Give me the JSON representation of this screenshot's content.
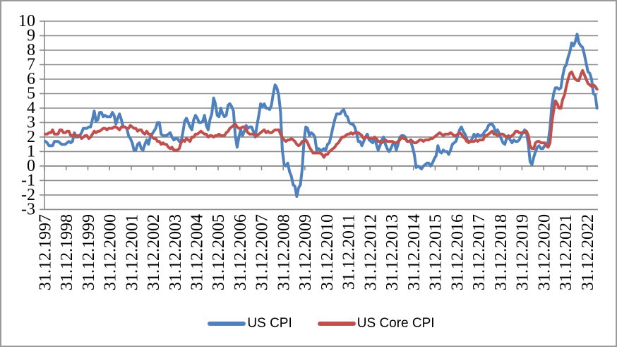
{
  "styles": {
    "background": "#ffffff",
    "border_color": "#9a9a9a",
    "grid_color": "#8a8a8a",
    "axis_text_color": "#000000",
    "series_blue": "#4F81BD",
    "series_red": "#C0504D"
  },
  "legend": {
    "items": [
      {
        "label": "US CPI",
        "color": "#4F81BD"
      },
      {
        "label": "US Core CPI",
        "color": "#C0504D"
      }
    ]
  },
  "chart_data": {
    "type": "line",
    "x_start": "31.12.1997",
    "x_end": "31.05.2023",
    "points_per_label_interval": 12,
    "x_tick_labels": [
      "31.12.1997",
      "31.12.1998",
      "31.12.1999",
      "31.12.2000",
      "31.12.2001",
      "31.12.2002",
      "31.12.2003",
      "31.12.2004",
      "31.12.2005",
      "31.12.2006",
      "31.12.2007",
      "31.12.2008",
      "31.12.2009",
      "31.12.2010",
      "31.12.2011",
      "31.12.2012",
      "31.12.2013",
      "31.12.2014",
      "31.12.2015",
      "31.12.2016",
      "31.12.2017",
      "31.12.2018",
      "31.12.2019",
      "31.12.2020",
      "31.12.2021",
      "31.12.2022"
    ],
    "y_ticks": [
      10,
      9,
      8,
      7,
      6,
      5,
      4,
      3,
      2,
      1,
      0,
      -1,
      -2,
      -3
    ],
    "ylim": [
      -3,
      10
    ],
    "grid": "horizontal",
    "legend_position": "bottom",
    "series": [
      {
        "name": "US CPI",
        "color": "#4F81BD",
        "values": [
          1.7,
          1.6,
          1.4,
          1.4,
          1.4,
          1.7,
          1.7,
          1.7,
          1.6,
          1.5,
          1.5,
          1.5,
          1.6,
          1.7,
          1.6,
          1.7,
          2.3,
          2.1,
          2.0,
          2.1,
          2.3,
          2.6,
          2.6,
          2.6,
          2.7,
          2.7,
          3.2,
          3.8,
          3.1,
          3.2,
          3.7,
          3.7,
          3.4,
          3.5,
          3.4,
          3.4,
          3.4,
          3.7,
          3.5,
          2.9,
          3.3,
          3.6,
          3.2,
          2.7,
          2.7,
          2.6,
          2.1,
          1.9,
          1.6,
          1.1,
          1.1,
          1.5,
          1.6,
          1.2,
          1.1,
          1.5,
          1.8,
          1.5,
          2.0,
          2.2,
          2.4,
          2.6,
          3.0,
          3.0,
          2.2,
          2.1,
          2.1,
          2.1,
          2.2,
          2.3,
          2.0,
          1.8,
          1.9,
          1.9,
          1.7,
          1.7,
          2.3,
          3.1,
          3.3,
          3.0,
          2.7,
          2.5,
          3.2,
          3.5,
          3.3,
          3.0,
          3.0,
          3.1,
          3.5,
          2.8,
          2.5,
          3.2,
          3.6,
          4.7,
          4.3,
          3.5,
          3.4,
          4.0,
          3.6,
          3.4,
          3.5,
          4.2,
          4.3,
          4.1,
          3.8,
          2.1,
          1.3,
          2.0,
          2.5,
          2.1,
          2.4,
          2.8,
          2.6,
          2.7,
          2.7,
          2.4,
          2.0,
          2.8,
          3.5,
          4.3,
          4.1,
          4.3,
          4.0,
          4.0,
          3.9,
          4.2,
          5.0,
          5.6,
          5.4,
          4.9,
          3.7,
          1.1,
          0.1,
          0.0,
          0.2,
          -0.4,
          -0.7,
          -1.3,
          -1.4,
          -2.1,
          -1.5,
          -1.3,
          -0.2,
          1.8,
          2.7,
          2.6,
          2.1,
          2.3,
          2.2,
          2.0,
          1.1,
          1.2,
          1.1,
          1.1,
          1.2,
          1.1,
          1.5,
          1.6,
          2.1,
          2.7,
          3.2,
          3.6,
          3.6,
          3.6,
          3.8,
          3.9,
          3.5,
          3.4,
          3.0,
          2.9,
          2.9,
          2.7,
          2.3,
          1.7,
          1.7,
          1.4,
          1.7,
          2.0,
          2.2,
          1.8,
          1.7,
          1.6,
          2.0,
          1.5,
          1.1,
          1.4,
          1.8,
          2.0,
          1.5,
          1.2,
          1.0,
          1.2,
          1.5,
          1.6,
          1.1,
          1.5,
          2.0,
          2.1,
          2.1,
          2.0,
          1.7,
          1.7,
          1.7,
          1.3,
          0.8,
          -0.1,
          0.0,
          -0.1,
          -0.2,
          0.0,
          0.1,
          0.2,
          0.2,
          0.0,
          0.2,
          0.5,
          0.7,
          1.4,
          1.0,
          0.9,
          1.1,
          1.0,
          1.0,
          0.8,
          1.1,
          1.5,
          1.6,
          1.7,
          2.1,
          2.5,
          2.7,
          2.4,
          2.2,
          1.9,
          1.6,
          1.7,
          1.9,
          2.2,
          2.0,
          2.2,
          2.1,
          2.1,
          2.2,
          2.4,
          2.5,
          2.8,
          2.9,
          2.9,
          2.7,
          2.3,
          2.5,
          2.2,
          1.9,
          1.6,
          1.5,
          1.9,
          2.0,
          1.8,
          1.6,
          1.8,
          1.7,
          1.7,
          1.8,
          2.1,
          2.3,
          2.5,
          2.3,
          1.5,
          0.3,
          0.1,
          0.6,
          1.0,
          1.3,
          1.4,
          1.2,
          1.2,
          1.4,
          1.4,
          1.7,
          2.6,
          4.2,
          5.0,
          5.4,
          5.4,
          5.3,
          5.4,
          6.2,
          6.8,
          7.0,
          7.5,
          7.9,
          8.5,
          8.3,
          8.6,
          9.1,
          8.5,
          8.3,
          8.2,
          7.7,
          7.1,
          6.5,
          6.4,
          6.0,
          5.0,
          4.9,
          4.0
        ]
      },
      {
        "name": "US Core CPI",
        "color": "#C0504D",
        "values": [
          2.2,
          2.2,
          2.3,
          2.3,
          2.5,
          2.2,
          2.2,
          2.2,
          2.5,
          2.5,
          2.3,
          2.3,
          2.4,
          2.4,
          2.1,
          2.1,
          2.2,
          2.0,
          2.1,
          2.1,
          1.9,
          2.0,
          2.1,
          2.1,
          1.9,
          2.0,
          2.2,
          2.4,
          2.3,
          2.4,
          2.4,
          2.5,
          2.6,
          2.6,
          2.5,
          2.6,
          2.6,
          2.6,
          2.7,
          2.7,
          2.6,
          2.5,
          2.7,
          2.7,
          2.7,
          2.6,
          2.6,
          2.8,
          2.7,
          2.6,
          2.6,
          2.4,
          2.5,
          2.5,
          2.3,
          2.2,
          2.4,
          2.2,
          2.2,
          2.0,
          1.9,
          1.9,
          1.7,
          1.7,
          1.5,
          1.6,
          1.5,
          1.5,
          1.3,
          1.2,
          1.3,
          1.1,
          1.1,
          1.1,
          1.2,
          1.6,
          1.8,
          1.7,
          1.9,
          1.8,
          1.7,
          2.0,
          2.0,
          2.2,
          2.2,
          2.3,
          2.4,
          2.3,
          2.2,
          2.2,
          2.0,
          2.1,
          2.1,
          2.0,
          2.1,
          2.1,
          2.2,
          2.1,
          2.1,
          2.1,
          2.3,
          2.4,
          2.6,
          2.7,
          2.8,
          2.9,
          2.7,
          2.6,
          2.6,
          2.7,
          2.7,
          2.5,
          2.3,
          2.2,
          2.2,
          2.2,
          2.1,
          2.1,
          2.2,
          2.3,
          2.4,
          2.5,
          2.3,
          2.4,
          2.3,
          2.3,
          2.4,
          2.5,
          2.5,
          2.5,
          2.2,
          2.0,
          1.8,
          1.7,
          1.8,
          1.8,
          1.9,
          1.8,
          1.7,
          1.5,
          1.4,
          1.5,
          1.7,
          1.7,
          1.8,
          1.6,
          1.3,
          1.1,
          0.9,
          0.9,
          0.9,
          0.9,
          0.9,
          0.8,
          0.6,
          0.8,
          0.8,
          1.0,
          1.1,
          1.2,
          1.3,
          1.5,
          1.6,
          1.8,
          2.0,
          2.0,
          2.1,
          2.2,
          2.2,
          2.3,
          2.2,
          2.3,
          2.3,
          2.3,
          2.2,
          2.1,
          1.9,
          2.0,
          2.0,
          1.9,
          1.9,
          1.9,
          2.0,
          1.9,
          1.7,
          1.7,
          1.6,
          1.7,
          1.8,
          1.7,
          1.7,
          1.7,
          1.7,
          1.6,
          1.6,
          1.7,
          1.8,
          2.0,
          1.9,
          1.9,
          1.7,
          1.7,
          1.8,
          1.7,
          1.6,
          1.6,
          1.7,
          1.8,
          1.8,
          1.7,
          1.8,
          1.8,
          1.8,
          1.9,
          1.9,
          2.0,
          2.1,
          2.2,
          2.3,
          2.2,
          2.1,
          2.2,
          2.2,
          2.2,
          2.3,
          2.2,
          2.1,
          2.1,
          2.2,
          2.3,
          2.2,
          2.0,
          1.9,
          1.7,
          1.7,
          1.7,
          1.7,
          1.7,
          1.8,
          1.7,
          1.8,
          1.8,
          1.8,
          2.1,
          2.1,
          2.2,
          2.3,
          2.4,
          2.2,
          2.2,
          2.1,
          2.2,
          2.2,
          2.2,
          2.1,
          2.0,
          2.1,
          2.0,
          2.1,
          2.2,
          2.4,
          2.4,
          2.3,
          2.3,
          2.3,
          2.3,
          2.4,
          2.1,
          1.4,
          1.2,
          1.2,
          1.6,
          1.7,
          1.7,
          1.6,
          1.6,
          1.6,
          1.4,
          1.3,
          1.6,
          3.0,
          3.8,
          4.5,
          4.3,
          4.0,
          4.0,
          4.6,
          4.9,
          5.5,
          6.0,
          6.4,
          6.5,
          6.2,
          6.0,
          5.9,
          5.9,
          6.3,
          6.6,
          6.3,
          6.0,
          5.7,
          5.6,
          5.5,
          5.6,
          5.5,
          5.3
        ]
      }
    ]
  }
}
